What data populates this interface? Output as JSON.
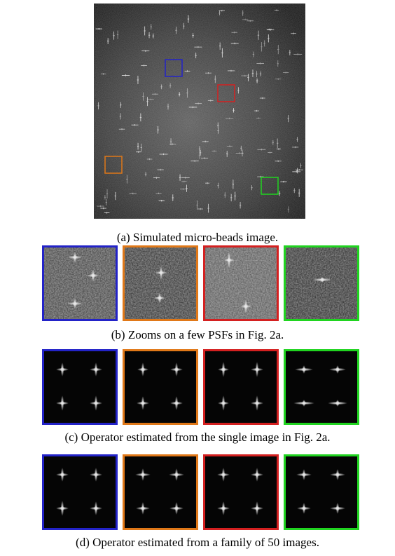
{
  "figure": {
    "zoom_colors": [
      "#2323c8",
      "#e07818",
      "#d42020",
      "#20d420"
    ],
    "captions": {
      "a": "(a) Simulated micro-beads image.",
      "b": "(b) Zooms on a few PSFs in Fig. 2a.",
      "c": "(c) Operator estimated from the single image in Fig. 2a.",
      "d": "(d) Operator estimated from a family of 50 images."
    }
  }
}
